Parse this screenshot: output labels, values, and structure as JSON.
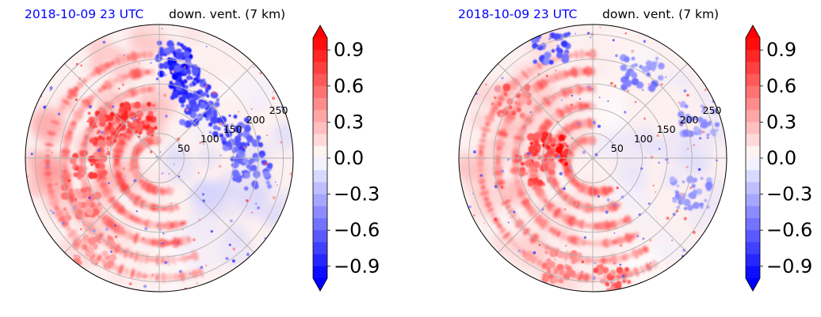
{
  "panels": [
    {
      "id": "left",
      "title_date": "2018-10-09 23 UTC",
      "title_variable": "down. vent. (7 km)",
      "radial_labels": [
        "50",
        "100",
        "150",
        "200",
        "250"
      ]
    },
    {
      "id": "right",
      "title_date": "2018-10-09 23 UTC",
      "title_variable": "down. vent. (7 km)",
      "radial_labels": [
        "50",
        "100",
        "150",
        "200",
        "250"
      ]
    }
  ],
  "colorbar": {
    "ticks": [
      "0.9",
      "0.6",
      "0.3",
      "0.0",
      "−0.3",
      "−0.6",
      "−0.9"
    ],
    "tick_values": [
      0.9,
      0.6,
      0.3,
      0.0,
      -0.3,
      -0.6,
      -0.9
    ],
    "range": [
      -1.0,
      1.0
    ],
    "extend": "both",
    "colormap": "bwr",
    "colors": {
      "low": "#0000ff",
      "mid": "#ffffff",
      "high": "#ff0000"
    }
  },
  "chart_data": [
    {
      "type": "heatmap",
      "projection": "polar",
      "title": "2018-10-09 23 UTC   down. vent. (7 km)",
      "radial_ticks": [
        50,
        100,
        150,
        200,
        250
      ],
      "angular_gridlines_deg": [
        0,
        45,
        90,
        135,
        180,
        225,
        270,
        315
      ],
      "grid": true,
      "colorbar_range": [
        -1.0,
        1.0
      ],
      "features": [
        {
          "name": "blue",
          "angle_deg": 68,
          "radius": 165,
          "value": -1.0
        },
        {
          "name": "blue",
          "angle_deg": 80,
          "radius": 205,
          "value": -1.0
        },
        {
          "name": "blue",
          "angle_deg": 50,
          "radius": 130,
          "value": -0.9
        },
        {
          "name": "blue",
          "angle_deg": 20,
          "radius": 155,
          "value": -0.8
        },
        {
          "name": "blue",
          "angle_deg": 5,
          "radius": 170,
          "value": -0.8
        },
        {
          "name": "blue",
          "angle_deg": -10,
          "radius": 190,
          "value": -0.7
        },
        {
          "name": "red",
          "angle_deg": 150,
          "radius": 120,
          "value": 0.9
        },
        {
          "name": "red",
          "angle_deg": 185,
          "radius": 140,
          "value": 0.8
        },
        {
          "name": "red",
          "angle_deg": 210,
          "radius": 180,
          "value": 0.6
        },
        {
          "name": "red",
          "angle_deg": 235,
          "radius": 230,
          "value": 0.5
        },
        {
          "name": "red",
          "angle_deg": 120,
          "radius": 90,
          "value": 0.9
        }
      ]
    },
    {
      "type": "heatmap",
      "projection": "polar",
      "title": "2018-10-09 23 UTC   down. vent. (7 km)",
      "radial_ticks": [
        50,
        100,
        150,
        200,
        250
      ],
      "angular_gridlines_deg": [
        0,
        45,
        90,
        135,
        180,
        225,
        270,
        315
      ],
      "grid": true,
      "colorbar_range": [
        -1.0,
        1.0
      ],
      "features": [
        {
          "name": "red",
          "angle_deg": 170,
          "radius": 90,
          "value": 1.0
        },
        {
          "name": "red",
          "angle_deg": 190,
          "radius": 120,
          "value": 0.8
        },
        {
          "name": "red",
          "angle_deg": 145,
          "radius": 200,
          "value": 0.7
        },
        {
          "name": "red",
          "angle_deg": 255,
          "radius": 230,
          "value": 0.6
        },
        {
          "name": "red",
          "angle_deg": 280,
          "radius": 255,
          "value": 0.7
        },
        {
          "name": "blue",
          "angle_deg": 110,
          "radius": 235,
          "value": -0.8
        },
        {
          "name": "blue",
          "angle_deg": 60,
          "radius": 200,
          "value": -0.6
        },
        {
          "name": "blue",
          "angle_deg": 20,
          "radius": 230,
          "value": -0.5
        },
        {
          "name": "blue",
          "angle_deg": -20,
          "radius": 210,
          "value": -0.5
        }
      ]
    }
  ]
}
